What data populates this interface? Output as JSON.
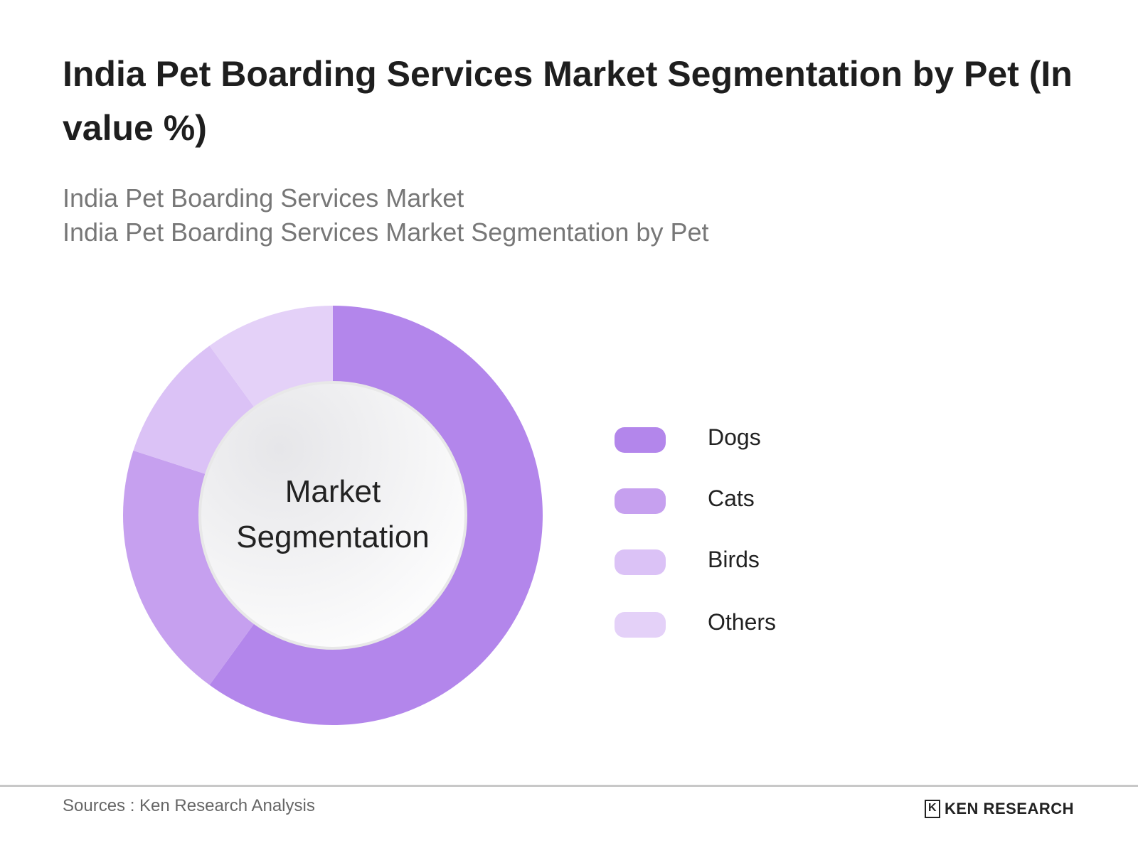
{
  "title": "India Pet Boarding Services Market Segmentation by Pet (In value %)",
  "subtitle_1": "India Pet Boarding Services Market",
  "subtitle_2": "India Pet Boarding Services Market Segmentation by Pet",
  "chart_data": {
    "type": "pie",
    "variant": "donut",
    "center_label": "Market Segmentation",
    "legend_position": "right",
    "categories": [
      "Dogs",
      "Cats",
      "Birds",
      "Others"
    ],
    "values": [
      60,
      20,
      10,
      10
    ],
    "colors": [
      "#b386eb",
      "#c6a0ef",
      "#dbc2f6",
      "#e4d1f8"
    ]
  },
  "footer": {
    "source": "Sources : Ken Research Analysis",
    "logo_text": "KEN RESEARCH",
    "logo_mark": "K"
  }
}
